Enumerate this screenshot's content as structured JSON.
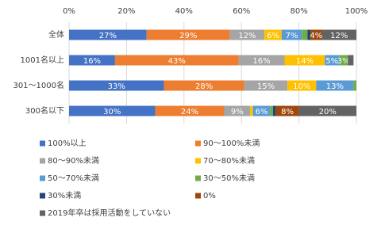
{
  "chart_data": {
    "type": "stacked-barh",
    "categories": [
      "全体",
      "1001名以上",
      "301〜1000名",
      "300名以下"
    ],
    "xlim": [
      0,
      100
    ],
    "xticks": [
      {
        "value": 0,
        "label": "0%"
      },
      {
        "value": 20,
        "label": "20%"
      },
      {
        "value": 40,
        "label": "40%"
      },
      {
        "value": 60,
        "label": "60%"
      },
      {
        "value": 80,
        "label": "80%"
      },
      {
        "value": 100,
        "label": "100%"
      }
    ],
    "grid": true,
    "series": [
      {
        "name": "100%以上",
        "color": "#4472c4",
        "values": [
          27,
          16,
          33,
          30
        ],
        "value_labels": [
          "27%",
          "16%",
          "33%",
          "30%"
        ]
      },
      {
        "name": "90〜100%未満",
        "color": "#ed7d31",
        "values": [
          29,
          43,
          28,
          24
        ],
        "value_labels": [
          "29%",
          "43%",
          "28%",
          "24%"
        ]
      },
      {
        "name": "80〜90%未満",
        "color": "#a5a5a5",
        "values": [
          12,
          16,
          15,
          9
        ],
        "value_labels": [
          "12%",
          "16%",
          "15%",
          "9%"
        ]
      },
      {
        "name": "70〜80%未満",
        "color": "#ffc000",
        "values": [
          6,
          14,
          10,
          1
        ],
        "value_labels": [
          "6%",
          "14%",
          "10%",
          null
        ]
      },
      {
        "name": "50〜70%未満",
        "color": "#5b9bd5",
        "values": [
          7,
          5,
          13,
          6
        ],
        "value_labels": [
          "7%",
          "5%",
          "13%",
          "6%"
        ]
      },
      {
        "name": "30〜50%未満",
        "color": "#70ad47",
        "values": [
          2,
          3,
          1,
          1
        ],
        "value_labels": [
          null,
          "3%",
          null,
          null
        ]
      },
      {
        "name": "30%未満",
        "color": "#264478",
        "values": [
          1,
          0,
          0,
          1
        ],
        "value_labels": [
          null,
          null,
          null,
          null
        ]
      },
      {
        "name": "0%",
        "color": "#9e480e",
        "values": [
          4,
          0,
          0,
          8
        ],
        "value_labels": [
          "4%",
          null,
          null,
          "8%"
        ]
      },
      {
        "name": "2019年卒は採用活動をしていない",
        "color": "#636363",
        "values": [
          12,
          2,
          0,
          20
        ],
        "value_labels": [
          "12%",
          null,
          null,
          "20%"
        ]
      }
    ]
  }
}
